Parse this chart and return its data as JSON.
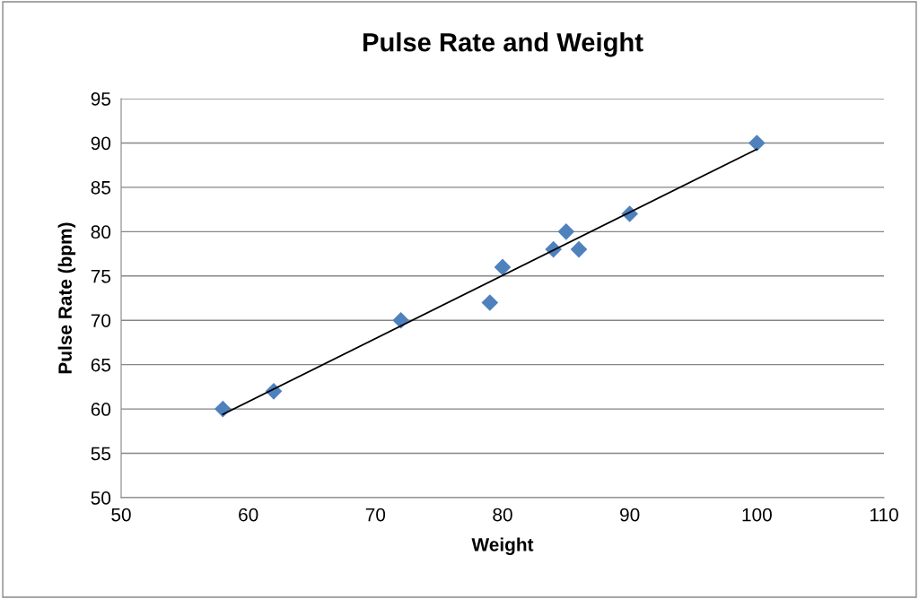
{
  "chart_data": {
    "type": "scatter",
    "title": "Pulse Rate and Weight",
    "xlabel": "Weight",
    "ylabel": "Pulse Rate (bpm)",
    "series": [
      {
        "color": "#4f81bd",
        "marker": "diamond",
        "x": [
          58,
          62,
          72,
          79,
          80,
          84,
          85,
          86,
          90,
          100
        ],
        "values": [
          60,
          62,
          70,
          72,
          76,
          78,
          80,
          78,
          82,
          90
        ]
      },
      {
        "type": "line",
        "color": "#000000",
        "marker": "none",
        "line_style": "solid",
        "x": [
          58,
          100
        ],
        "values": [
          59.4,
          89.3
        ]
      }
    ],
    "xlim": [
      50,
      110
    ],
    "xticks": [
      50,
      60,
      70,
      80,
      90,
      100,
      110
    ],
    "ylim": [
      50,
      95
    ],
    "yticks": [
      50,
      55,
      60,
      65,
      70,
      75,
      80,
      85,
      90,
      95
    ],
    "grid": "y",
    "legend": false
  }
}
